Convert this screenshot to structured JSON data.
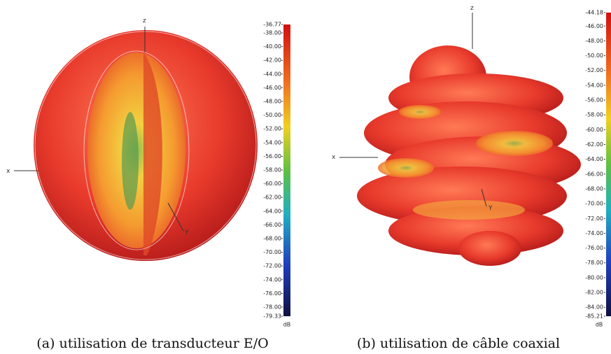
{
  "panels": [
    {
      "axes": {
        "z": "z",
        "x": "x",
        "y": "Y"
      },
      "colorbar": {
        "ticks": [
          "-36.77",
          "-38.00",
          "-40.00",
          "-42.00",
          "-44.00",
          "-46.00",
          "-48.00",
          "-50.00",
          "-52.00",
          "-54.00",
          "-56.00",
          "-58.00",
          "-60.00",
          "-62.00",
          "-64.00",
          "-66.00",
          "-68.00",
          "-70.00",
          "-72.00",
          "-74.00",
          "-76.00",
          "-78.00",
          "-79.33"
        ],
        "unit": "dB"
      },
      "caption": "(a) utilisation de transducteur E/O"
    },
    {
      "axes": {
        "z": "z",
        "x": "x",
        "y": "Y"
      },
      "colorbar": {
        "ticks": [
          "-44.18",
          "-46.00",
          "-48.00",
          "-50.00",
          "-52.00",
          "-54.00",
          "-56.00",
          "-58.00",
          "-60.00",
          "-62.00",
          "-64.00",
          "-66.00",
          "-68.00",
          "-70.00",
          "-72.00",
          "-74.00",
          "-76.00",
          "-78.00",
          "-80.00",
          "-82.00",
          "-84.00",
          "-85.21"
        ],
        "unit": "dB"
      },
      "caption": "(b) utilisation de câble coaxial"
    }
  ]
}
